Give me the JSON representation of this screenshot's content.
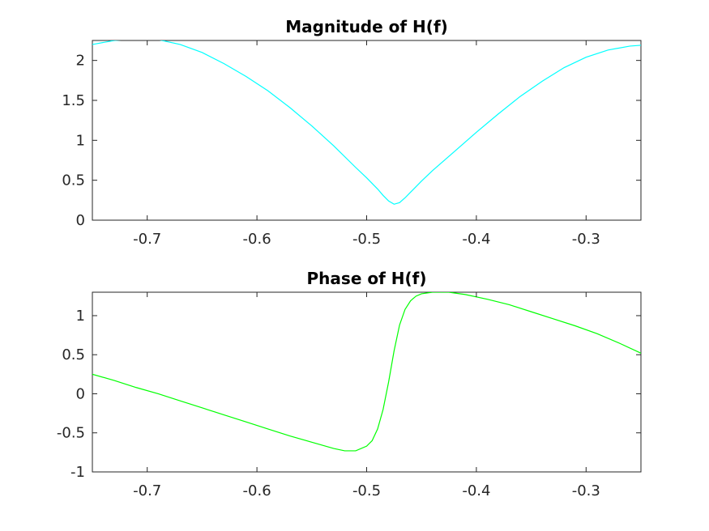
{
  "chart_data": [
    {
      "type": "line",
      "title": "Magnitude of H(f)",
      "xlabel": "",
      "ylabel": "",
      "xlim": [
        -0.75,
        -0.25
      ],
      "ylim": [
        0,
        2.25
      ],
      "xticks": [
        -0.7,
        -0.6,
        -0.5,
        -0.4,
        -0.3
      ],
      "xtick_labels": [
        "-0.7",
        "-0.6",
        "-0.5",
        "-0.4",
        "-0.3"
      ],
      "yticks": [
        0,
        0.5,
        1,
        1.5,
        2
      ],
      "ytick_labels": [
        "0",
        "0.5",
        "1",
        "1.5",
        "2"
      ],
      "grid": false,
      "series": [
        {
          "color": "#00ffff",
          "x": [
            -0.75,
            -0.73,
            -0.71,
            -0.7,
            -0.69,
            -0.67,
            -0.65,
            -0.63,
            -0.61,
            -0.59,
            -0.57,
            -0.55,
            -0.53,
            -0.51,
            -0.5,
            -0.49,
            -0.485,
            -0.48,
            -0.475,
            -0.47,
            -0.465,
            -0.46,
            -0.45,
            -0.44,
            -0.42,
            -0.4,
            -0.38,
            -0.36,
            -0.34,
            -0.32,
            -0.3,
            -0.28,
            -0.26,
            -0.25
          ],
          "y": [
            2.2,
            2.25,
            2.27,
            2.27,
            2.26,
            2.2,
            2.1,
            1.96,
            1.8,
            1.62,
            1.41,
            1.18,
            0.93,
            0.66,
            0.53,
            0.39,
            0.31,
            0.24,
            0.2,
            0.22,
            0.28,
            0.35,
            0.49,
            0.62,
            0.86,
            1.1,
            1.33,
            1.55,
            1.74,
            1.91,
            2.04,
            2.13,
            2.18,
            2.19
          ]
        }
      ]
    },
    {
      "type": "line",
      "title": "Phase of H(f)",
      "xlabel": "",
      "ylabel": "",
      "xlim": [
        -0.75,
        -0.25
      ],
      "ylim": [
        -1,
        1.3
      ],
      "xticks": [
        -0.7,
        -0.6,
        -0.5,
        -0.4,
        -0.3
      ],
      "xtick_labels": [
        "-0.7",
        "-0.6",
        "-0.5",
        "-0.4",
        "-0.3"
      ],
      "yticks": [
        -1,
        -0.5,
        0,
        0.5,
        1
      ],
      "ytick_labels": [
        "-1",
        "-0.5",
        "0",
        "0.5",
        "1"
      ],
      "grid": false,
      "series": [
        {
          "color": "#00ff00",
          "x": [
            -0.75,
            -0.73,
            -0.71,
            -0.69,
            -0.67,
            -0.65,
            -0.63,
            -0.61,
            -0.59,
            -0.57,
            -0.55,
            -0.53,
            -0.52,
            -0.51,
            -0.5,
            -0.495,
            -0.49,
            -0.485,
            -0.48,
            -0.475,
            -0.47,
            -0.465,
            -0.46,
            -0.455,
            -0.45,
            -0.44,
            -0.43,
            -0.425,
            -0.42,
            -0.41,
            -0.39,
            -0.37,
            -0.35,
            -0.33,
            -0.31,
            -0.29,
            -0.27,
            -0.25
          ],
          "y": [
            0.25,
            0.17,
            0.08,
            0.0,
            -0.09,
            -0.18,
            -0.27,
            -0.36,
            -0.45,
            -0.54,
            -0.62,
            -0.7,
            -0.73,
            -0.73,
            -0.67,
            -0.6,
            -0.45,
            -0.2,
            0.15,
            0.55,
            0.88,
            1.08,
            1.19,
            1.25,
            1.28,
            1.3,
            1.3,
            1.3,
            1.29,
            1.27,
            1.21,
            1.14,
            1.05,
            0.96,
            0.87,
            0.77,
            0.65,
            0.52
          ]
        }
      ]
    }
  ]
}
